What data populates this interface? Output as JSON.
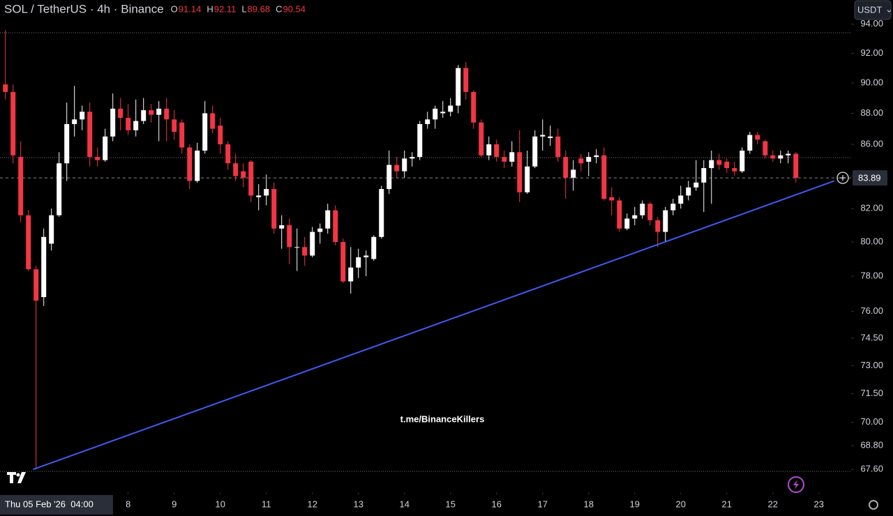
{
  "header": {
    "symbol": "SOL / TetherUS · 4h · Binance",
    "ohlc": [
      {
        "key": "O",
        "value": 91.14
      },
      {
        "key": "H",
        "value": 92.11
      },
      {
        "key": "L",
        "value": 89.68
      },
      {
        "key": "C",
        "value": 90.54
      }
    ],
    "currency": "USDT"
  },
  "watermark": "t.me/BinanceKillers",
  "crosshair_label": "Thu 05 Feb '26  04:00",
  "chart_data": {
    "type": "candlestick",
    "log_scale": true,
    "up_color": "#ffffff",
    "down_color": "#f23645",
    "xlim": [
      -0.7,
      110.2
    ],
    "xticks": [
      {
        "value": 16,
        "label": "8"
      },
      {
        "value": 22,
        "label": "9"
      },
      {
        "value": 28,
        "label": "10"
      },
      {
        "value": 34,
        "label": "11"
      },
      {
        "value": 40,
        "label": "12"
      },
      {
        "value": 46,
        "label": "13"
      },
      {
        "value": 52,
        "label": "14"
      },
      {
        "value": 58,
        "label": "15"
      },
      {
        "value": 64,
        "label": "16"
      },
      {
        "value": 70,
        "label": "17"
      },
      {
        "value": 76,
        "label": "18"
      },
      {
        "value": 82,
        "label": "19"
      },
      {
        "value": 88,
        "label": "20"
      },
      {
        "value": 94,
        "label": "21"
      },
      {
        "value": 100,
        "label": "22"
      },
      {
        "value": 106,
        "label": "23"
      }
    ],
    "ylim": [
      66.5,
      95.7
    ],
    "yticks": [
      {
        "value": 94,
        "label": "94.00"
      },
      {
        "value": 92,
        "label": "92.00"
      },
      {
        "value": 90,
        "label": "90.00"
      },
      {
        "value": 88,
        "label": "88.00"
      },
      {
        "value": 86,
        "label": "86.00"
      },
      {
        "value": 84,
        "label": "84.00"
      },
      {
        "value": 82,
        "label": "82.00"
      },
      {
        "value": 80,
        "label": "80.00"
      },
      {
        "value": 78,
        "label": "78.00"
      },
      {
        "value": 76,
        "label": "76.00"
      },
      {
        "value": 74.5,
        "label": "74.50"
      },
      {
        "value": 73,
        "label": "73.00"
      },
      {
        "value": 71.5,
        "label": "71.50"
      },
      {
        "value": 70,
        "label": "70.00"
      },
      {
        "value": 68.8,
        "label": "68.80"
      },
      {
        "value": 67.6,
        "label": "67.60"
      }
    ],
    "open": [
      89.9,
      89.4,
      85.2,
      81.6,
      78.4,
      76.8,
      79.9,
      81.6,
      84.8,
      87.3,
      87.6,
      88.1,
      85.2,
      85.0,
      86.5,
      88.3,
      87.7,
      86.9,
      87.5,
      88.2,
      87.9,
      88.3,
      87.6,
      87.4,
      85.8,
      83.7,
      85.6,
      88.0,
      87.2,
      86.0,
      84.8,
      84.3,
      84.9,
      82.7,
      82.8,
      83.2,
      80.8,
      81.0,
      79.7,
      79.7,
      79.2,
      80.6,
      80.8,
      81.9,
      80.0,
      77.7,
      78.5,
      79.1,
      79.0,
      80.3,
      83.2,
      84.7,
      84.3,
      85.1,
      85.2,
      87.3,
      87.6,
      88.0,
      88.1,
      88.5,
      91.0,
      89.4,
      87.4,
      85.3,
      86.0,
      85.2,
      84.9,
      85.5,
      83.0,
      84.6,
      86.5,
      86.4,
      86.5,
      85.2,
      83.9,
      85.1,
      84.9,
      85.2,
      85.3,
      82.7,
      82.5,
      80.8,
      81.4,
      81.6,
      82.3,
      81.3,
      80.6,
      81.9,
      82.3,
      82.8,
      83.3,
      83.6,
      84.5,
      85.0,
      84.9,
      84.5,
      84.3,
      85.6,
      86.6,
      86.2,
      85.3,
      85.1,
      85.3,
      85.4
    ],
    "high": [
      93.6,
      89.9,
      86.2,
      81.9,
      78.6,
      80.8,
      82.0,
      85.5,
      88.7,
      89.8,
      88.5,
      88.7,
      85.8,
      87.0,
      89.3,
      89.0,
      88.6,
      88.9,
      89.0,
      88.6,
      88.8,
      89.0,
      88.2,
      87.6,
      86.0,
      86.1,
      88.8,
      88.5,
      87.7,
      86.2,
      85.4,
      84.8,
      85.0,
      83.5,
      84.1,
      83.6,
      81.6,
      81.4,
      80.8,
      80.3,
      80.9,
      81.1,
      82.3,
      82.2,
      80.2,
      79.7,
      79.6,
      79.5,
      80.4,
      83.4,
      85.6,
      85.2,
      85.6,
      85.5,
      87.5,
      88.1,
      88.5,
      88.8,
      89.0,
      91.2,
      91.4,
      89.5,
      87.6,
      86.5,
      86.3,
      85.6,
      86.2,
      86.9,
      85.6,
      86.9,
      87.6,
      87.2,
      87.0,
      85.6,
      85.0,
      85.4,
      85.5,
      85.7,
      85.8,
      83.3,
      82.7,
      81.7,
      82.1,
      82.5,
      82.4,
      81.5,
      82.1,
      82.6,
      83.4,
      83.7,
      85.0,
      85.0,
      85.6,
      85.4,
      85.1,
      84.9,
      85.8,
      86.8,
      86.8,
      86.3,
      85.6,
      85.6,
      85.6,
      85.5
    ],
    "low": [
      88.9,
      84.8,
      81.2,
      78.3,
      67.6,
      76.3,
      79.5,
      81.5,
      83.7,
      86.5,
      86.9,
      84.6,
      84.6,
      84.9,
      86.2,
      86.9,
      86.6,
      86.5,
      87.3,
      87.4,
      86.2,
      86.2,
      86.3,
      85.4,
      83.2,
      83.6,
      85.4,
      86.7,
      85.4,
      84.4,
      83.7,
      83.3,
      82.4,
      81.9,
      82.2,
      80.5,
      79.6,
      78.7,
      78.3,
      78.6,
      79.1,
      79.9,
      80.5,
      79.8,
      77.6,
      77.0,
      77.9,
      78.0,
      78.9,
      80.2,
      82.9,
      83.9,
      83.9,
      84.6,
      85.0,
      87.0,
      87.0,
      87.7,
      87.8,
      88.0,
      88.9,
      87.0,
      85.2,
      85.0,
      84.9,
      84.5,
      84.6,
      82.4,
      82.9,
      84.5,
      85.6,
      85.9,
      84.9,
      82.6,
      83.1,
      84.3,
      84.0,
      84.8,
      82.5,
      81.6,
      80.6,
      80.7,
      81.0,
      81.4,
      81.0,
      79.7,
      80.0,
      81.6,
      82.0,
      82.5,
      83.1,
      81.8,
      82.3,
      84.4,
      84.2,
      84.0,
      84.2,
      85.4,
      86.0,
      85.1,
      84.9,
      84.8,
      84.8,
      83.6
    ],
    "close": [
      89.4,
      85.3,
      81.6,
      78.4,
      76.6,
      80.3,
      81.6,
      84.8,
      87.3,
      87.6,
      88.1,
      85.2,
      85.0,
      86.5,
      88.3,
      87.7,
      86.9,
      87.5,
      88.2,
      87.9,
      88.3,
      87.6,
      86.8,
      85.8,
      83.7,
      85.6,
      88.0,
      87.0,
      86.0,
      84.8,
      84.0,
      83.9,
      82.8,
      82.8,
      83.2,
      80.8,
      81.0,
      79.7,
      79.7,
      79.2,
      80.6,
      80.8,
      81.9,
      80.0,
      77.7,
      78.5,
      79.1,
      79.2,
      80.3,
      83.2,
      84.7,
      84.3,
      85.1,
      85.2,
      87.3,
      87.6,
      88.3,
      88.1,
      88.5,
      91.0,
      89.4,
      87.4,
      85.3,
      86.0,
      85.2,
      84.9,
      85.5,
      83.0,
      84.6,
      86.5,
      86.6,
      86.5,
      85.2,
      83.9,
      84.4,
      84.8,
      85.2,
      85.3,
      82.6,
      82.5,
      80.8,
      81.4,
      81.6,
      82.3,
      81.3,
      80.6,
      81.9,
      82.3,
      82.8,
      83.3,
      83.6,
      84.5,
      85.0,
      84.7,
      84.5,
      84.3,
      85.6,
      86.6,
      86.3,
      85.3,
      85.1,
      85.3,
      85.4,
      83.89
    ],
    "trendline": {
      "x": [
        3.6,
        108
      ],
      "y": [
        67.6,
        83.7
      ],
      "color": "#3d5cf5"
    },
    "last_price": 83.89
  }
}
